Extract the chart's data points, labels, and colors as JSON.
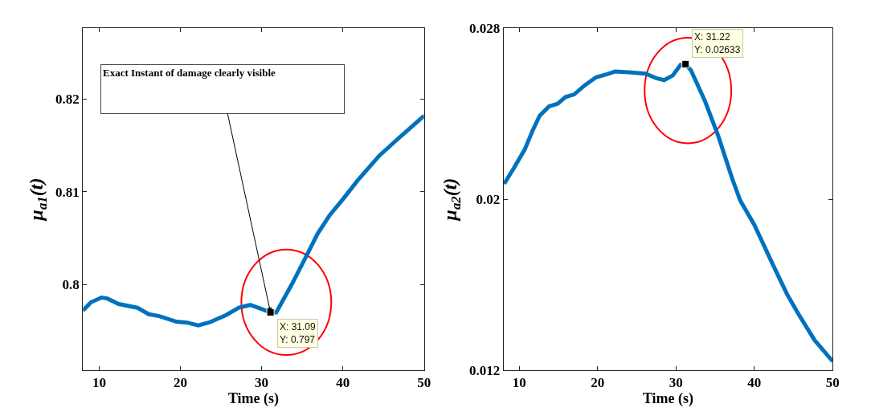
{
  "chart_data": [
    {
      "type": "line",
      "xlabel": "Time (s)",
      "ylabel": "μ$_{a1}$(t)",
      "xlim": [
        8,
        50
      ],
      "ylim": [
        0.7908,
        0.8276
      ],
      "xticks": [
        10,
        20,
        30,
        40,
        50
      ],
      "yticks": [
        0.8,
        0.81,
        0.82
      ],
      "grid": false,
      "marker": "none",
      "line_style": "solid",
      "series": [
        {
          "color": "#0072bd",
          "x": [
            8.0,
            9.0,
            10.3,
            11.0,
            12.4,
            14.7,
            16.1,
            17.4,
            19.5,
            20.8,
            22.2,
            23.5,
            25.6,
            27.2,
            28.6,
            29.9,
            31.09,
            31.8,
            33.7,
            35.4,
            36.9,
            38.4,
            40.1,
            41.8,
            44.5,
            46.9,
            50
          ],
          "values": [
            0.7972,
            0.7981,
            0.7986,
            0.7985,
            0.7979,
            0.7975,
            0.7968,
            0.7966,
            0.796,
            0.7959,
            0.7956,
            0.7959,
            0.7967,
            0.7975,
            0.7978,
            0.7974,
            0.797,
            0.797,
            0.8,
            0.8029,
            0.8055,
            0.8075,
            0.8093,
            0.8112,
            0.8139,
            0.8158,
            0.8182
          ]
        },
        {
          "type": "scatter",
          "marker": "square",
          "color": "#000000",
          "x": [
            31.09
          ],
          "values": [
            0.797
          ]
        }
      ],
      "annotations": [
        "Exact Instant of damage clearly visible",
        {
          "text": "X: 31.09\nY: 0.797",
          "x": 31.09,
          "y": 0.797
        }
      ]
    },
    {
      "type": "line",
      "xlabel": "Time (s)",
      "ylabel": "μ$_{a2}$(t)",
      "xlim": [
        8,
        50
      ],
      "ylim": [
        0.012,
        0.028
      ],
      "xticks": [
        10,
        20,
        30,
        40,
        50
      ],
      "yticks": [
        0.012,
        0.02,
        0.028
      ],
      "grid": false,
      "marker": "none",
      "line_style": "solid",
      "series": [
        {
          "color": "#0072bd",
          "x": [
            8.07,
            9.3,
            10.7,
            11.7,
            12.6,
            13.8,
            14.9,
            15.9,
            17.0,
            18.4,
            19.8,
            21.2,
            22.2,
            24.0,
            26.1,
            27.5,
            28.5,
            29.6,
            30.6,
            31.22,
            31.9,
            33.7,
            35.4,
            37.2,
            38.2,
            40.0,
            42.4,
            44.2,
            45.6,
            47.7,
            50
          ],
          "values": [
            0.02072,
            0.02145,
            0.02233,
            0.02321,
            0.02391,
            0.02435,
            0.02447,
            0.02479,
            0.02491,
            0.02535,
            0.02571,
            0.02586,
            0.02598,
            0.02595,
            0.02588,
            0.02567,
            0.02558,
            0.0258,
            0.0263,
            0.02633,
            0.02605,
            0.0246,
            0.02296,
            0.02094,
            0.01994,
            0.0188,
            0.01691,
            0.01553,
            0.01464,
            0.01339,
            0.0124
          ]
        },
        {
          "type": "scatter",
          "marker": "square",
          "color": "#000000",
          "x": [
            31.22
          ],
          "values": [
            0.02633
          ]
        }
      ],
      "annotations": [
        {
          "text": "X: 31.22\nY: 0.02633",
          "x": 31.22,
          "y": 0.02633
        }
      ]
    }
  ]
}
